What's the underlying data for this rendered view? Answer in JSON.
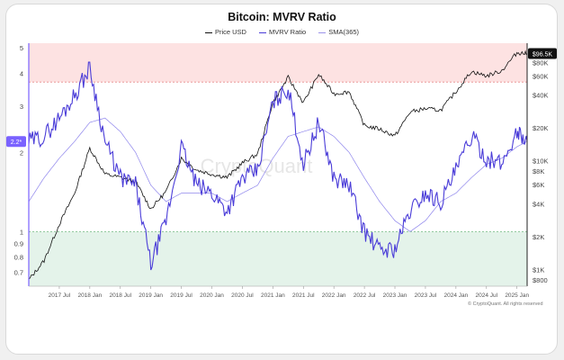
{
  "chart_data": {
    "type": "line",
    "title": "Bitcoin: MVRV Ratio",
    "legend": [
      "Price USD",
      "MVRV Ratio",
      "SMA(365)"
    ],
    "colors": {
      "price": "#111111",
      "mvrv": "#4a3cd8",
      "sma": "#6a5fe0",
      "high_zone": "#fde2e2",
      "low_zone": "#e4f3ea",
      "high_line": "#e78a8a",
      "low_line": "#7cc08a"
    },
    "left_axis": {
      "scale": "log",
      "ticks": [
        5,
        4,
        3,
        2,
        1,
        0.9,
        0.8,
        0.7
      ],
      "range": [
        0.62,
        5.2
      ]
    },
    "right_axis": {
      "scale": "log",
      "ticks": [
        "$80K",
        "$60K",
        "$40K",
        "$20K",
        "$10K",
        "$8K",
        "$6K",
        "$4K",
        "$2K",
        "$1K",
        "$800"
      ],
      "tick_values": [
        80000,
        60000,
        40000,
        20000,
        10000,
        8000,
        6000,
        4000,
        2000,
        1000,
        800
      ]
    },
    "x_ticks": [
      "2017 Jul",
      "2018 Jan",
      "2018 Jul",
      "2019 Jan",
      "2019 Jul",
      "2020 Jan",
      "2020 Jul",
      "2021 Jan",
      "2021 Jul",
      "2022 Jan",
      "2022 Jul",
      "2023 Jan",
      "2023 Jul",
      "2024 Jan",
      "2024 Jul",
      "2025 Jan"
    ],
    "x_range": [
      "2017-01",
      "2025-03"
    ],
    "zones": {
      "high": 3.7,
      "low": 1.0
    },
    "current_mvrv_label": "2.2*",
    "current_price_label": "$96.5K",
    "watermark": "CryptoQuant",
    "x": [
      "2017-01",
      "2017-04",
      "2017-07",
      "2017-10",
      "2018-01",
      "2018-04",
      "2018-07",
      "2018-10",
      "2019-01",
      "2019-04",
      "2019-07",
      "2019-10",
      "2020-01",
      "2020-04",
      "2020-07",
      "2020-10",
      "2021-01",
      "2021-04",
      "2021-07",
      "2021-10",
      "2022-01",
      "2022-04",
      "2022-07",
      "2022-10",
      "2023-01",
      "2023-04",
      "2023-07",
      "2023-10",
      "2024-01",
      "2024-04",
      "2024-07",
      "2024-10",
      "2025-01",
      "2025-03"
    ],
    "series": [
      {
        "name": "MVRV Ratio",
        "values": [
          2.2,
          2.3,
          2.7,
          3.3,
          4.2,
          2.2,
          1.6,
          1.5,
          0.75,
          1.1,
          2.1,
          1.5,
          1.4,
          1.2,
          1.6,
          1.7,
          3.1,
          3.5,
          1.8,
          2.6,
          1.6,
          1.5,
          1.0,
          0.85,
          0.86,
          1.2,
          1.4,
          1.3,
          1.7,
          2.3,
          1.9,
          1.8,
          2.4,
          2.2
        ]
      },
      {
        "name": "Price USD",
        "values": [
          800,
          1200,
          2600,
          5000,
          13000,
          7500,
          7000,
          6400,
          3600,
          5200,
          10500,
          8200,
          7500,
          7000,
          9500,
          11500,
          34000,
          58000,
          34000,
          62000,
          41000,
          43000,
          21000,
          19500,
          16800,
          28000,
          30000,
          29000,
          43000,
          66000,
          60000,
          67000,
          98000,
          96500
        ]
      },
      {
        "name": "SMA(365)",
        "values": [
          1.3,
          1.6,
          1.9,
          2.2,
          2.6,
          2.7,
          2.4,
          2.0,
          1.5,
          1.3,
          1.4,
          1.4,
          1.4,
          1.3,
          1.4,
          1.5,
          1.9,
          2.3,
          2.4,
          2.5,
          2.3,
          2.0,
          1.6,
          1.3,
          1.1,
          1.0,
          1.1,
          1.3,
          1.4,
          1.6,
          1.8,
          1.9,
          2.1,
          2.2
        ]
      }
    ],
    "credit": "CryptoQuant. All rights reserved"
  }
}
